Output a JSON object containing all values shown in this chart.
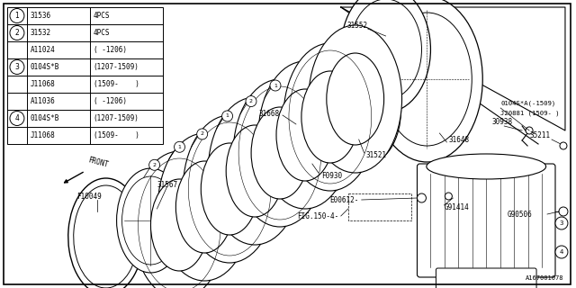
{
  "bg_color": "#ffffff",
  "border_color": "#000000",
  "footer_text": "A167001078",
  "table_rows": [
    {
      "circle": "1",
      "part": "31536",
      "qty": "4PCS"
    },
    {
      "circle": "2",
      "part": "31532",
      "qty": "4PCS"
    },
    {
      "circle": "",
      "part": "A11024",
      "qty": "( -1206)"
    },
    {
      "circle": "3",
      "part": "0104S*B",
      "qty": "(1207-1509)"
    },
    {
      "circle": "",
      "part": "J11068",
      "qty": "(1509-    )"
    },
    {
      "circle": "",
      "part": "A11036",
      "qty": "( -1206)"
    },
    {
      "circle": "4",
      "part": "0104S*B",
      "qty": "(1207-1509)"
    },
    {
      "circle": "",
      "part": "J11068",
      "qty": "(1509-    )"
    }
  ]
}
